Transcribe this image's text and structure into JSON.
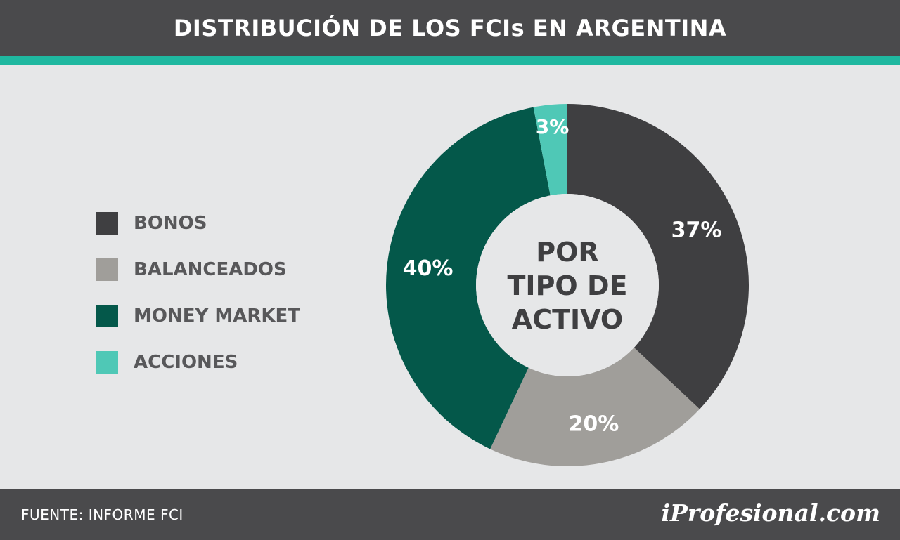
{
  "header": {
    "title": "DISTRIBUCIÓN DE LOS FCIs EN ARGENTINA"
  },
  "legend": [
    {
      "label": "BONOS",
      "color": "#3f3f41"
    },
    {
      "label": "BALANCEADOS",
      "color": "#a09e9a"
    },
    {
      "label": "MONEY MARKET",
      "color": "#04584a"
    },
    {
      "label": "ACCIONES",
      "color": "#4fc8b6"
    }
  ],
  "center_label": [
    "POR",
    "TIPO DE",
    "ACTIVO"
  ],
  "chart_data": {
    "type": "pie",
    "title": "DISTRIBUCIÓN DE LOS FCIs EN ARGENTINA",
    "categories": [
      "BONOS",
      "BALANCEADOS",
      "MONEY MARKET",
      "ACCIONES"
    ],
    "values": [
      37,
      20,
      40,
      3
    ],
    "labels": [
      "37%",
      "20%",
      "40%",
      "3%"
    ],
    "colors": [
      "#3f3f41",
      "#a09e9a",
      "#04584a",
      "#4fc8b6"
    ],
    "legend": "left",
    "donut": true
  },
  "footer": {
    "source": "FUENTE:  INFORME FCI",
    "logo": "iProfesional.com"
  }
}
